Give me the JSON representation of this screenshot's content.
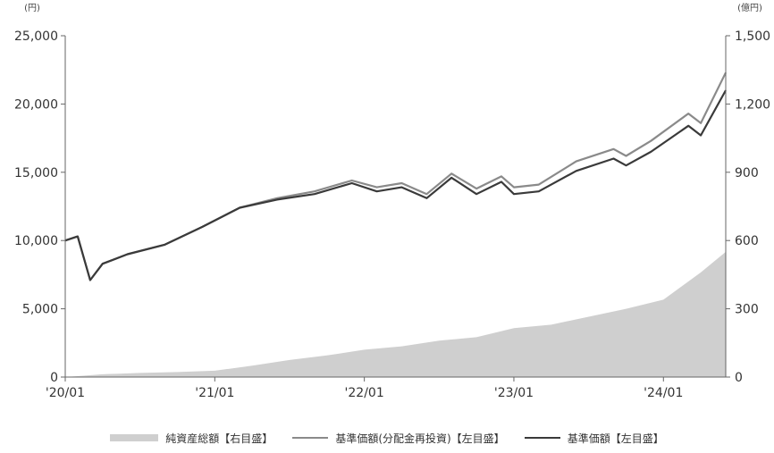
{
  "colors": {
    "area": "#cfcfcf",
    "reinvest_line": "#8a8a8a",
    "nav_line": "#3a3a3a",
    "axis": "#666666"
  },
  "chart_data": {
    "type": "line",
    "left_unit": "(円)",
    "right_unit": "(億円)",
    "x_ticks": [
      "'20/01",
      "'21/01",
      "'22/01",
      "'23/01",
      "'24/01"
    ],
    "x_range": [
      "2020-01",
      "2024-06"
    ],
    "y_left": {
      "min": 0,
      "max": 25000,
      "ticks": [
        "0",
        "5,000",
        "10,000",
        "15,000",
        "20,000",
        "25,000"
      ]
    },
    "y_right": {
      "min": 0,
      "max": 1500,
      "ticks": [
        "0",
        "300",
        "600",
        "900",
        "1,200",
        "1,500"
      ]
    },
    "grid": false,
    "legend_position": "bottom",
    "series": [
      {
        "name": "純資産総額【右目盛】",
        "type": "area",
        "axis": "right",
        "x": [
          "2020-01",
          "2020-04",
          "2020-07",
          "2020-10",
          "2021-01",
          "2021-04",
          "2021-07",
          "2021-10",
          "2022-01",
          "2022-04",
          "2022-07",
          "2022-10",
          "2023-01",
          "2023-04",
          "2023-07",
          "2023-10",
          "2024-01",
          "2024-04",
          "2024-06"
        ],
        "values": [
          0,
          12,
          18,
          22,
          28,
          50,
          75,
          95,
          120,
          135,
          160,
          175,
          215,
          230,
          265,
          300,
          340,
          460,
          550
        ]
      },
      {
        "name": "基準価額(分配金再投資)【左目盛】",
        "type": "line",
        "axis": "left",
        "x": [
          "2020-01",
          "2020-02",
          "2020-03",
          "2020-04",
          "2020-06",
          "2020-09",
          "2020-12",
          "2021-03",
          "2021-06",
          "2021-09",
          "2021-12",
          "2022-02",
          "2022-04",
          "2022-06",
          "2022-08",
          "2022-10",
          "2022-12",
          "2023-01",
          "2023-03",
          "2023-06",
          "2023-09",
          "2023-10",
          "2023-12",
          "2024-03",
          "2024-04",
          "2024-06"
        ],
        "values": [
          10000,
          10300,
          7100,
          8300,
          9000,
          9700,
          11000,
          12400,
          13100,
          13600,
          14400,
          13900,
          14200,
          13400,
          14900,
          13800,
          14700,
          13900,
          14100,
          15800,
          16700,
          16200,
          17300,
          19300,
          18600,
          22300
        ]
      },
      {
        "name": "基準価額【左目盛】",
        "type": "line",
        "axis": "left",
        "x": [
          "2020-01",
          "2020-02",
          "2020-03",
          "2020-04",
          "2020-06",
          "2020-09",
          "2020-12",
          "2021-03",
          "2021-06",
          "2021-09",
          "2021-12",
          "2022-02",
          "2022-04",
          "2022-06",
          "2022-08",
          "2022-10",
          "2022-12",
          "2023-01",
          "2023-03",
          "2023-06",
          "2023-09",
          "2023-10",
          "2023-12",
          "2024-03",
          "2024-04",
          "2024-06"
        ],
        "values": [
          10000,
          10300,
          7100,
          8300,
          9000,
          9700,
          11000,
          12400,
          13000,
          13400,
          14200,
          13600,
          13900,
          13100,
          14600,
          13400,
          14300,
          13400,
          13600,
          15100,
          16000,
          15500,
          16500,
          18400,
          17700,
          21000
        ]
      }
    ]
  }
}
